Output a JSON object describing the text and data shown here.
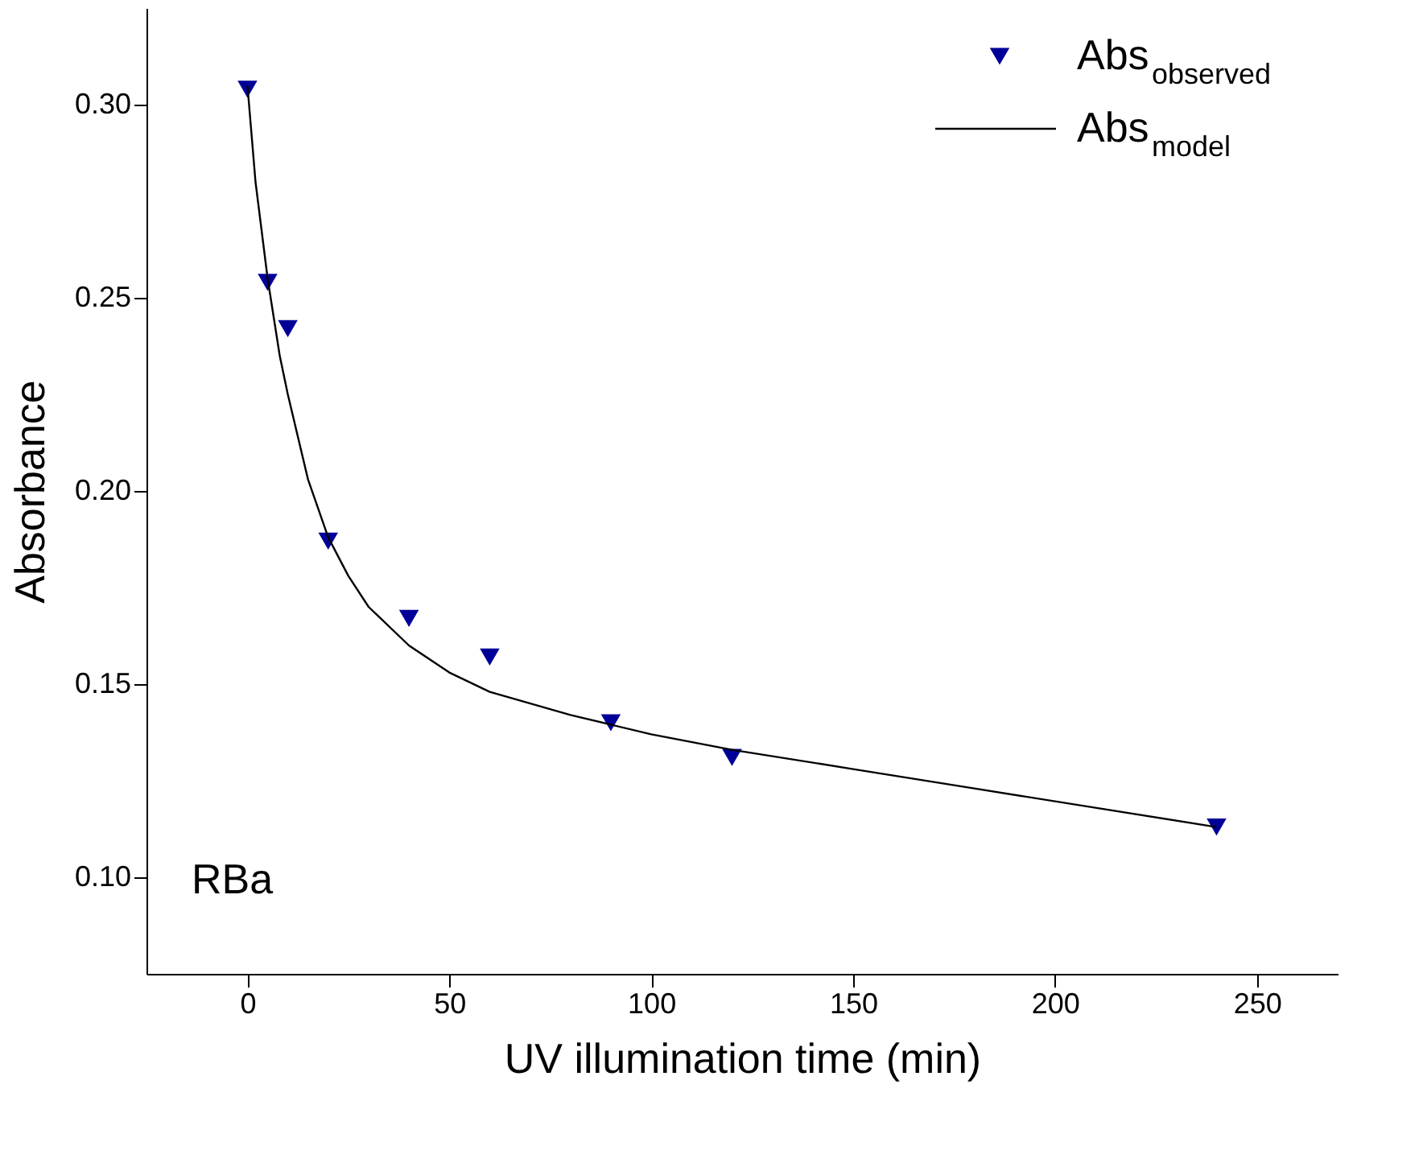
{
  "chart_data": {
    "type": "scatter",
    "xlabel": "UV illumination time (min)",
    "ylabel": "Absorbance",
    "xlim": [
      -25,
      270
    ],
    "ylim": [
      0.075,
      0.325
    ],
    "xticks": [
      0,
      50,
      100,
      150,
      200,
      250
    ],
    "yticks": [
      {
        "value": 0.1,
        "label": "0.10"
      },
      0.15,
      {
        "value": 0.2,
        "label": "0.20"
      },
      0.25,
      {
        "value": 0.3,
        "label": "0.30"
      }
    ],
    "grid": false,
    "legend": "top right",
    "annotations": [
      "RBa"
    ],
    "series": [
      {
        "name": "Abs$_{observed}$",
        "marker": "triangle",
        "color": "#000099",
        "x": [
          0,
          5,
          10,
          20,
          40,
          60,
          90,
          120,
          240
        ],
        "values": [
          0.304,
          0.254,
          0.242,
          0.187,
          0.167,
          0.157,
          0.14,
          0.131,
          0.113
        ]
      },
      {
        "name": "Abs$_{model}$",
        "type": "line",
        "marker": "none",
        "line_style": "solid",
        "color": "#000000",
        "x": [
          0,
          2,
          5,
          8,
          10,
          15,
          20,
          25,
          30,
          40,
          50,
          60,
          80,
          100,
          120,
          150,
          180,
          210,
          240
        ],
        "values": [
          0.305,
          0.28,
          0.255,
          0.235,
          0.225,
          0.203,
          0.188,
          0.178,
          0.17,
          0.16,
          0.153,
          0.148,
          0.142,
          0.137,
          0.133,
          0.128,
          0.123,
          0.118,
          0.113
        ]
      }
    ]
  }
}
